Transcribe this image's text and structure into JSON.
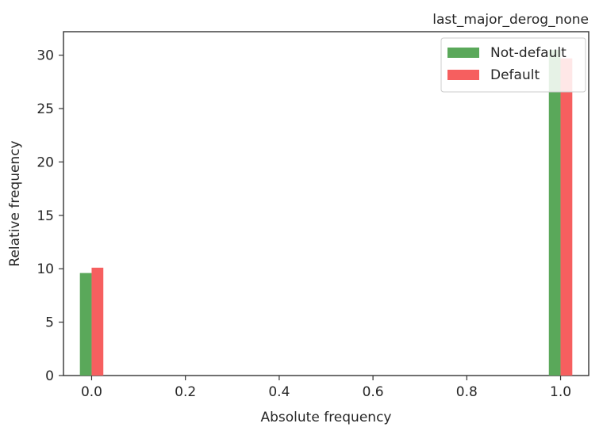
{
  "chart_data": {
    "type": "bar",
    "title": "last_major_derog_none",
    "xlabel": "Absolute frequency",
    "ylabel": "Relative frequency",
    "xlim": [
      -0.06,
      1.06
    ],
    "ylim": [
      0,
      32.2
    ],
    "xticks": [
      0.0,
      0.2,
      0.4,
      0.6,
      0.8,
      1.0
    ],
    "xtick_labels": [
      "0.0",
      "0.2",
      "0.4",
      "0.6",
      "0.8",
      "1.0"
    ],
    "yticks": [
      0,
      5,
      10,
      15,
      20,
      25,
      30
    ],
    "ytick_labels": [
      "0",
      "5",
      "10",
      "15",
      "20",
      "25",
      "30"
    ],
    "bar_width": 0.025,
    "legend_position": "top-right",
    "grid": false,
    "series": [
      {
        "name": "Not-default",
        "color": "#5aa85a",
        "x": [
          0.0,
          1.0
        ],
        "values": [
          9.6,
          30.5
        ],
        "offset": -0.0125
      },
      {
        "name": "Default",
        "color": "#f65f5f",
        "x": [
          0.0,
          1.0
        ],
        "values": [
          10.1,
          29.7
        ],
        "offset": 0.0125
      }
    ]
  }
}
